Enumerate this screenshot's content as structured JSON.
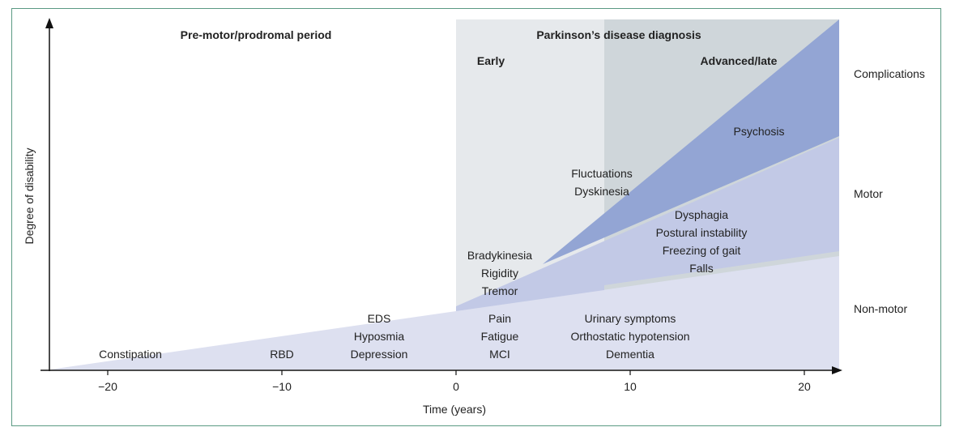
{
  "periods": {
    "prodromal": "Pre-motor/prodromal period",
    "diagnosis": "Parkinson’s disease diagnosis",
    "early": "Early",
    "advanced": "Advanced/late"
  },
  "categories": {
    "complications": "Complications",
    "motor": "Motor",
    "non_motor": "Non-motor"
  },
  "axes": {
    "ylabel": "Degree of disability",
    "xlabel": "Time (years)",
    "x_ticks": [
      "−20",
      "−10",
      "0",
      "10",
      "20"
    ]
  },
  "symptoms": {
    "prodromal": [
      "Constipation",
      "RBD"
    ],
    "prodromal_group": [
      "EDS",
      "Hyposmia",
      "Depression"
    ],
    "early_nonmotor": [
      "Pain",
      "Fatigue",
      "MCI"
    ],
    "late_nonmotor": [
      "Urinary symptoms",
      "Orthostatic hypotension",
      "Dementia"
    ],
    "early_motor": [
      "Bradykinesia",
      "Rigidity",
      "Tremor"
    ],
    "late_motor": [
      "Dysphagia",
      "Postural instability",
      "Freezing of gait",
      "Falls"
    ],
    "motor_complications": [
      "Fluctuations",
      "Dyskinesia"
    ],
    "psychosis": "Psychosis"
  },
  "colors": {
    "frame": "#5b9a83",
    "early_band": "#e6e9ec",
    "late_band": "#cfd6da",
    "non_motor": "#dde0f0",
    "motor": "#c2c9e6",
    "complications": "#93a5d4"
  }
}
